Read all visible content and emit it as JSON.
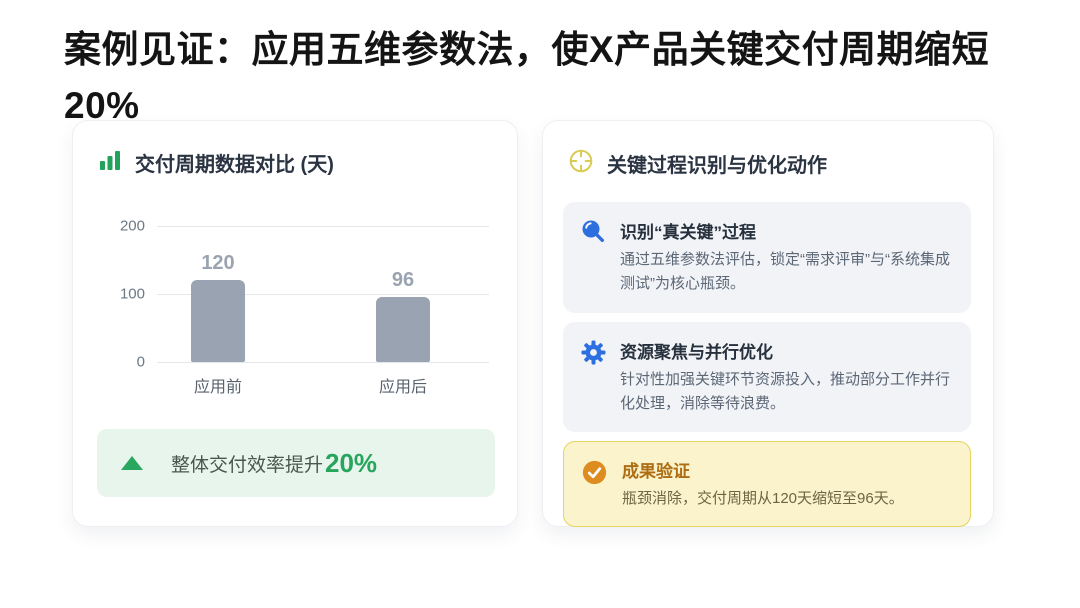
{
  "title": {
    "line1": "案例见证：应用五维参数法，使X产品关键交付周期缩短",
    "line2": "20%"
  },
  "left_card": {
    "header": {
      "icon": "bar-chart-icon",
      "title": "交付周期数据对比 (天)"
    },
    "summary": {
      "icon": "triangle-up-icon",
      "text": "整体交付效率提升",
      "value": "20%"
    }
  },
  "chart_data": {
    "type": "bar",
    "title": "交付周期数据对比 (天)",
    "categories": [
      "应用前",
      "应用后"
    ],
    "values": [
      120,
      96
    ],
    "value_labels": [
      "120",
      "96"
    ],
    "ylim": [
      0,
      200
    ],
    "yticks": [
      0,
      100,
      200
    ],
    "grid": true,
    "bar_color": "#9aa3b2",
    "xlabel": "",
    "ylabel": ""
  },
  "right_card": {
    "header": {
      "icon": "target-icon",
      "title": "关键过程识别与优化动作"
    },
    "items": [
      {
        "icon": "magnifier-icon",
        "title": "识别“真关键”过程",
        "body": "通过五维参数法评估，锁定“需求评审”与“系统集成测试”为核心瓶颈。"
      },
      {
        "icon": "gear-icon",
        "title": "资源聚焦与并行优化",
        "body": "针对性加强关键环节资源投入，推动部分工作并行化处理，消除等待浪费。"
      },
      {
        "icon": "check-icon",
        "title": "成果验证",
        "body": "瓶颈消除，交付周期从120天缩短至96天。"
      }
    ]
  },
  "colors": {
    "accent_green": "#27a55d",
    "accent_blue": "#2e6fe0",
    "accent_orange": "#dd8c20",
    "accent_yellow": "#d9cc55",
    "bar_gray": "#9aa3b2",
    "green_box_bg": "#e7f5ec",
    "yellow_box_bg": "#faf3cb",
    "item_bg": "#f1f3f7"
  }
}
